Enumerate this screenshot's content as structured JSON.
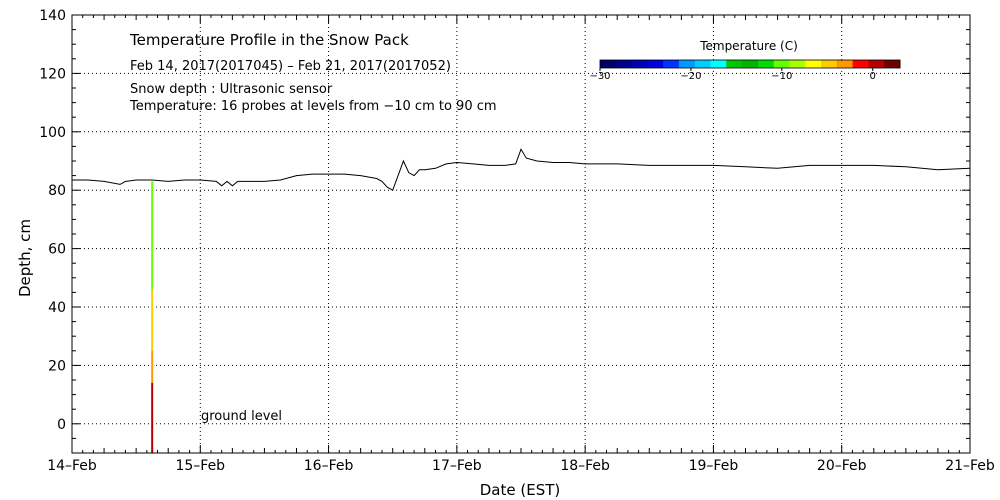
{
  "chart_data": {
    "type": "line",
    "title": "Temperature Profile in the Snow Pack",
    "subtitle": "Feb 14, 2017(2017045) – Feb 21, 2017(2017052)",
    "notes": [
      "Snow depth : Ultrasonic sensor",
      "Temperature: 16 probes at levels from −10 cm to 90 cm"
    ],
    "xlabel": "Date (EST)",
    "ylabel": "Depth, cm",
    "xlim": [
      "2017-02-14",
      "2017-02-21"
    ],
    "ylim": [
      -10,
      140
    ],
    "x_ticks": [
      "14–Feb",
      "15–Feb",
      "16–Feb",
      "17–Feb",
      "18–Feb",
      "19–Feb",
      "20–Feb",
      "21–Feb"
    ],
    "y_ticks": [
      0,
      20,
      40,
      60,
      80,
      100,
      120,
      140
    ],
    "y_tick_labels": [
      "0",
      "20",
      "40",
      "60",
      "80",
      "100",
      "120",
      "140"
    ],
    "grid": true,
    "annotation": "ground level",
    "series": [
      {
        "name": "Snow depth",
        "color": "#000000",
        "x": [
          "2017-02-14T00:00",
          "2017-02-14T03:00",
          "2017-02-14T06:00",
          "2017-02-14T09:00",
          "2017-02-14T10:00",
          "2017-02-14T12:00",
          "2017-02-14T15:00",
          "2017-02-14T18:00",
          "2017-02-14T21:00",
          "2017-02-15T00:00",
          "2017-02-15T03:00",
          "2017-02-15T04:00",
          "2017-02-15T05:00",
          "2017-02-15T06:00",
          "2017-02-15T07:00",
          "2017-02-15T09:00",
          "2017-02-15T12:00",
          "2017-02-15T15:00",
          "2017-02-15T18:00",
          "2017-02-15T21:00",
          "2017-02-16T00:00",
          "2017-02-16T03:00",
          "2017-02-16T06:00",
          "2017-02-16T09:00",
          "2017-02-16T10:00",
          "2017-02-16T11:00",
          "2017-02-16T12:00",
          "2017-02-16T13:00",
          "2017-02-16T14:00",
          "2017-02-16T15:00",
          "2017-02-16T16:00",
          "2017-02-16T17:00",
          "2017-02-16T18:00",
          "2017-02-16T20:00",
          "2017-02-16T22:00",
          "2017-02-17T00:00",
          "2017-02-17T03:00",
          "2017-02-17T06:00",
          "2017-02-17T09:00",
          "2017-02-17T11:00",
          "2017-02-17T12:00",
          "2017-02-17T13:00",
          "2017-02-17T15:00",
          "2017-02-17T18:00",
          "2017-02-17T21:00",
          "2017-02-18T00:00",
          "2017-02-18T06:00",
          "2017-02-18T12:00",
          "2017-02-18T18:00",
          "2017-02-19T00:00",
          "2017-02-19T06:00",
          "2017-02-19T12:00",
          "2017-02-19T18:00",
          "2017-02-20T00:00",
          "2017-02-20T06:00",
          "2017-02-20T12:00",
          "2017-02-20T15:00",
          "2017-02-20T18:00",
          "2017-02-21T00:00"
        ],
        "y": [
          83.5,
          83.5,
          83,
          82,
          83,
          83.5,
          83.5,
          83,
          83.5,
          83.5,
          83,
          81.5,
          83,
          81.5,
          83,
          83,
          83,
          83.5,
          85,
          85.5,
          85.5,
          85.5,
          85,
          84,
          83,
          81,
          80,
          85,
          90,
          86,
          85,
          87,
          87,
          87.5,
          89,
          89.5,
          89,
          88.5,
          88.5,
          89,
          94,
          91,
          90,
          89.5,
          89.5,
          89,
          89,
          88.5,
          88.5,
          88.5,
          88,
          87.5,
          88.5,
          88.5,
          88.5,
          88,
          87.5,
          87,
          87.5
        ]
      }
    ],
    "profile": {
      "date": "2017-02-14T15:00",
      "segments": [
        {
          "from": 83,
          "to": 46,
          "temperature": -10
        },
        {
          "from": 46,
          "to": 25,
          "temperature": -5
        },
        {
          "from": 25,
          "to": 14,
          "temperature": -3
        },
        {
          "from": 14,
          "to": -10,
          "temperature": 0
        }
      ]
    },
    "colorbar": {
      "title": "Temperature (C)",
      "range": [
        -30,
        3
      ],
      "ticks": [
        -30,
        -20,
        -10,
        0
      ],
      "tick_labels": [
        "−30",
        "−20",
        "−10",
        "0"
      ],
      "colors": [
        "#000066",
        "#00008c",
        "#0000b4",
        "#0000d8",
        "#0033ff",
        "#0099ff",
        "#00ccff",
        "#00ffff",
        "#00c800",
        "#00b400",
        "#00dc00",
        "#66ff00",
        "#aaff00",
        "#ffff00",
        "#ffcc00",
        "#ff9900",
        "#ff0000",
        "#b40000",
        "#6e0000"
      ]
    }
  }
}
